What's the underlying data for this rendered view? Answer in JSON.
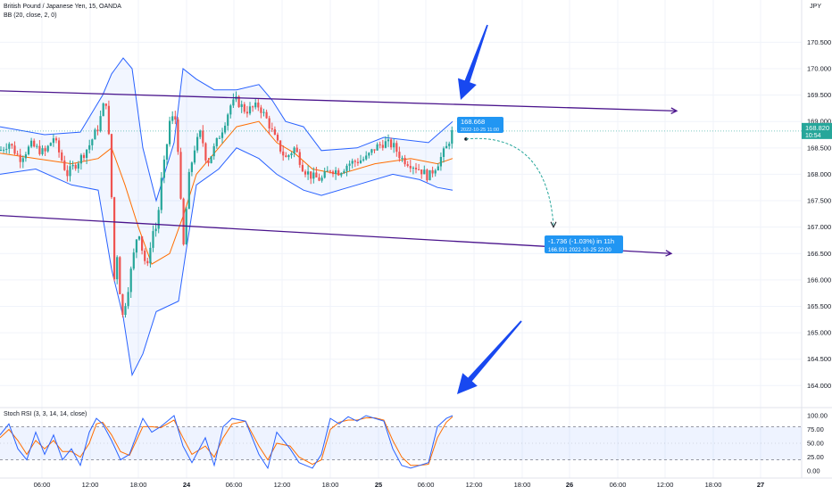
{
  "header": {
    "symbol_line": "British Pound / Japanese Yen, 15, OANDA",
    "bb_line": "BB (20, close, 2, 0)",
    "stoch_line": "Stoch RSI (3, 3, 14, 14, close)",
    "currency": "JPY"
  },
  "price_label": {
    "value": "168.820",
    "countdown": "10:54"
  },
  "callout_top": {
    "value": "168.668",
    "datetime": "2022-10-25  11:00"
  },
  "callout_bottom": {
    "change": "-1.736 (-1.03%) in 11h",
    "value": "166.931",
    "datetime": "2022-10-25  22:00"
  },
  "colors": {
    "up": "#26a69a",
    "down": "#ef5350",
    "bb_band": "#2962ff",
    "bb_basis": "#ff6d00",
    "channel": "#4a148c",
    "arrow": "#1848f0",
    "callout": "#2196f3",
    "price_label": "#26a69a",
    "stoch_k": "#2962ff",
    "stoch_d": "#ff6d00"
  },
  "chart_data": {
    "type": "candlestick",
    "title": "British Pound / Japanese Yen, 15, OANDA",
    "y_unit": "JPY",
    "ylim": [
      163.6,
      171.3
    ],
    "y_ticks": [
      164.0,
      164.5,
      165.0,
      165.5,
      166.0,
      166.5,
      167.0,
      167.5,
      168.0,
      168.5,
      169.0,
      169.5,
      170.0,
      170.5
    ],
    "x_ticks": [
      "06:00",
      "12:00",
      "18:00",
      "24",
      "06:00",
      "12:00",
      "18:00",
      "25",
      "06:00",
      "12:00",
      "18:00",
      "26",
      "06:00",
      "12:00",
      "18:00",
      "27"
    ],
    "last_price": 168.82,
    "candle_anchors": [
      [
        0,
        168.45
      ],
      [
        10,
        168.6
      ],
      [
        22,
        168.3
      ],
      [
        35,
        168.55
      ],
      [
        50,
        168.4
      ],
      [
        60,
        168.7
      ],
      [
        75,
        168.0
      ],
      [
        90,
        168.3
      ],
      [
        100,
        168.55
      ],
      [
        110,
        168.9
      ],
      [
        116,
        169.3
      ],
      [
        120,
        169.4
      ],
      [
        123,
        168.3
      ],
      [
        126,
        167.2
      ],
      [
        128,
        166.0
      ],
      [
        132,
        166.6
      ],
      [
        136,
        165.2
      ],
      [
        142,
        165.7
      ],
      [
        148,
        166.3
      ],
      [
        155,
        167.0
      ],
      [
        160,
        166.5
      ],
      [
        165,
        166.2
      ],
      [
        170,
        166.9
      ],
      [
        176,
        167.0
      ],
      [
        180,
        167.8
      ],
      [
        185,
        168.3
      ],
      [
        190,
        169.0
      ],
      [
        196,
        169.1
      ],
      [
        200,
        168.4
      ],
      [
        205,
        166.5
      ],
      [
        208,
        167.2
      ],
      [
        212,
        168.0
      ],
      [
        218,
        168.5
      ],
      [
        225,
        168.8
      ],
      [
        232,
        168.2
      ],
      [
        240,
        168.5
      ],
      [
        250,
        168.9
      ],
      [
        258,
        169.3
      ],
      [
        265,
        169.4
      ],
      [
        275,
        169.2
      ],
      [
        290,
        169.3
      ],
      [
        300,
        169.0
      ],
      [
        310,
        168.6
      ],
      [
        320,
        168.3
      ],
      [
        330,
        168.5
      ],
      [
        340,
        168.1
      ],
      [
        350,
        167.95
      ],
      [
        360,
        167.9
      ],
      [
        370,
        168.1
      ],
      [
        380,
        168.05
      ],
      [
        390,
        168.2
      ],
      [
        400,
        168.25
      ],
      [
        410,
        168.3
      ],
      [
        420,
        168.5
      ],
      [
        430,
        168.6
      ],
      [
        440,
        168.55
      ],
      [
        450,
        168.3
      ],
      [
        460,
        168.2
      ],
      [
        470,
        168.1
      ],
      [
        480,
        167.95
      ],
      [
        490,
        168.2
      ],
      [
        500,
        168.5
      ],
      [
        507,
        168.82
      ]
    ],
    "bollinger_bands": {
      "period": 20,
      "multiplier": 2,
      "upper": [
        [
          0,
          168.9
        ],
        [
          50,
          168.75
        ],
        [
          90,
          168.8
        ],
        [
          115,
          169.5
        ],
        [
          125,
          169.9
        ],
        [
          138,
          170.2
        ],
        [
          148,
          170.0
        ],
        [
          160,
          168.5
        ],
        [
          175,
          167.5
        ],
        [
          195,
          168.6
        ],
        [
          205,
          170.0
        ],
        [
          220,
          169.8
        ],
        [
          240,
          169.6
        ],
        [
          265,
          169.6
        ],
        [
          290,
          169.7
        ],
        [
          305,
          169.4
        ],
        [
          320,
          169.0
        ],
        [
          340,
          168.9
        ],
        [
          360,
          168.45
        ],
        [
          400,
          168.5
        ],
        [
          430,
          168.7
        ],
        [
          480,
          168.6
        ],
        [
          507,
          169.0
        ]
      ],
      "lower": [
        [
          0,
          168.0
        ],
        [
          40,
          168.1
        ],
        [
          80,
          167.8
        ],
        [
          110,
          167.7
        ],
        [
          125,
          166.2
        ],
        [
          138,
          165.3
        ],
        [
          148,
          164.2
        ],
        [
          160,
          164.6
        ],
        [
          175,
          165.4
        ],
        [
          200,
          165.6
        ],
        [
          208,
          166.5
        ],
        [
          220,
          167.8
        ],
        [
          245,
          168.1
        ],
        [
          265,
          168.5
        ],
        [
          290,
          168.3
        ],
        [
          310,
          168.0
        ],
        [
          340,
          167.7
        ],
        [
          360,
          167.6
        ],
        [
          400,
          167.8
        ],
        [
          440,
          168.0
        ],
        [
          470,
          167.9
        ],
        [
          490,
          167.75
        ],
        [
          507,
          167.7
        ]
      ],
      "basis": [
        [
          0,
          168.4
        ],
        [
          40,
          168.3
        ],
        [
          80,
          168.2
        ],
        [
          110,
          168.3
        ],
        [
          125,
          168.5
        ],
        [
          140,
          167.8
        ],
        [
          155,
          167.0
        ],
        [
          170,
          166.3
        ],
        [
          190,
          166.5
        ],
        [
          205,
          167.2
        ],
        [
          220,
          168.0
        ],
        [
          245,
          168.5
        ],
        [
          265,
          168.9
        ],
        [
          290,
          169.0
        ],
        [
          310,
          168.6
        ],
        [
          330,
          168.4
        ],
        [
          350,
          168.1
        ],
        [
          380,
          168.0
        ],
        [
          420,
          168.2
        ],
        [
          460,
          168.3
        ],
        [
          490,
          168.2
        ],
        [
          507,
          168.3
        ]
      ]
    },
    "channel_lines": [
      {
        "from": [
          0,
          169.58
        ],
        "to": [
          758,
          169.2
        ]
      },
      {
        "from": [
          0,
          167.22
        ],
        "to": [
          752,
          166.5
        ]
      }
    ],
    "stoch_rsi": {
      "ylim": [
        0,
        100
      ],
      "y_ticks": [
        0.0,
        25.0,
        50.0,
        75.0,
        100.0
      ],
      "band": [
        20,
        80
      ],
      "k": [
        [
          0,
          65
        ],
        [
          10,
          85
        ],
        [
          20,
          40
        ],
        [
          30,
          20
        ],
        [
          40,
          70
        ],
        [
          50,
          30
        ],
        [
          60,
          65
        ],
        [
          70,
          20
        ],
        [
          80,
          40
        ],
        [
          90,
          10
        ],
        [
          100,
          70
        ],
        [
          108,
          95
        ],
        [
          115,
          85
        ],
        [
          125,
          55
        ],
        [
          135,
          20
        ],
        [
          145,
          30
        ],
        [
          160,
          95
        ],
        [
          170,
          70
        ],
        [
          180,
          80
        ],
        [
          195,
          100
        ],
        [
          205,
          45
        ],
        [
          215,
          15
        ],
        [
          230,
          60
        ],
        [
          240,
          10
        ],
        [
          250,
          80
        ],
        [
          260,
          95
        ],
        [
          275,
          90
        ],
        [
          290,
          30
        ],
        [
          300,
          5
        ],
        [
          310,
          70
        ],
        [
          325,
          40
        ],
        [
          335,
          15
        ],
        [
          350,
          5
        ],
        [
          360,
          30
        ],
        [
          370,
          95
        ],
        [
          380,
          85
        ],
        [
          390,
          98
        ],
        [
          400,
          90
        ],
        [
          410,
          100
        ],
        [
          420,
          95
        ],
        [
          430,
          90
        ],
        [
          440,
          40
        ],
        [
          450,
          10
        ],
        [
          460,
          5
        ],
        [
          470,
          10
        ],
        [
          480,
          15
        ],
        [
          490,
          80
        ],
        [
          500,
          95
        ],
        [
          507,
          100
        ]
      ],
      "d": [
        [
          0,
          60
        ],
        [
          10,
          75
        ],
        [
          20,
          55
        ],
        [
          30,
          30
        ],
        [
          40,
          55
        ],
        [
          50,
          40
        ],
        [
          60,
          55
        ],
        [
          70,
          35
        ],
        [
          80,
          35
        ],
        [
          90,
          25
        ],
        [
          100,
          50
        ],
        [
          108,
          85
        ],
        [
          115,
          88
        ],
        [
          125,
          65
        ],
        [
          135,
          35
        ],
        [
          145,
          28
        ],
        [
          160,
          80
        ],
        [
          170,
          80
        ],
        [
          180,
          78
        ],
        [
          195,
          92
        ],
        [
          205,
          60
        ],
        [
          215,
          30
        ],
        [
          230,
          45
        ],
        [
          240,
          25
        ],
        [
          250,
          60
        ],
        [
          260,
          85
        ],
        [
          275,
          90
        ],
        [
          290,
          45
        ],
        [
          300,
          20
        ],
        [
          310,
          50
        ],
        [
          325,
          45
        ],
        [
          335,
          25
        ],
        [
          350,
          12
        ],
        [
          360,
          20
        ],
        [
          370,
          75
        ],
        [
          380,
          88
        ],
        [
          390,
          92
        ],
        [
          400,
          92
        ],
        [
          410,
          96
        ],
        [
          420,
          96
        ],
        [
          430,
          92
        ],
        [
          440,
          55
        ],
        [
          450,
          25
        ],
        [
          460,
          10
        ],
        [
          470,
          10
        ],
        [
          480,
          12
        ],
        [
          490,
          60
        ],
        [
          500,
          88
        ],
        [
          507,
          98
        ]
      ]
    },
    "annotations": [
      {
        "type": "projection",
        "from_price": 168.668,
        "to_price": 166.931,
        "change": "-1.736 (-1.03%)",
        "duration": "11h"
      },
      {
        "type": "arrow",
        "direction": "down-left",
        "pane": "price"
      },
      {
        "type": "arrow",
        "direction": "down-left",
        "pane": "stoch"
      }
    ]
  }
}
